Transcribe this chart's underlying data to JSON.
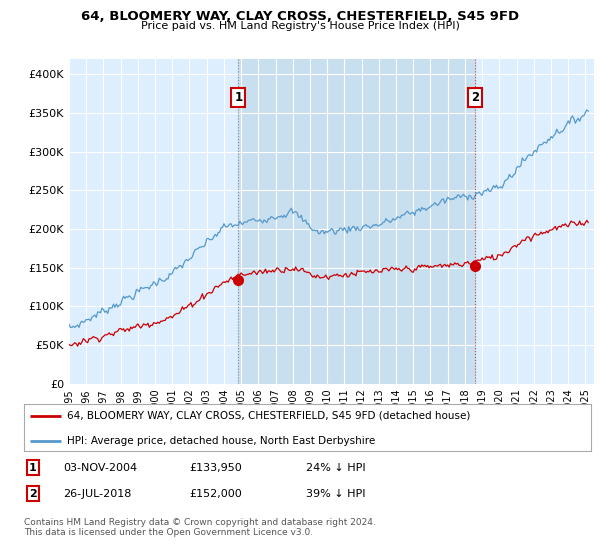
{
  "title": "64, BLOOMERY WAY, CLAY CROSS, CHESTERFIELD, S45 9FD",
  "subtitle": "Price paid vs. HM Land Registry's House Price Index (HPI)",
  "ylabel_ticks": [
    "£0",
    "£50K",
    "£100K",
    "£150K",
    "£200K",
    "£250K",
    "£300K",
    "£350K",
    "£400K"
  ],
  "ytick_values": [
    0,
    50000,
    100000,
    150000,
    200000,
    250000,
    300000,
    350000,
    400000
  ],
  "ylim": [
    0,
    420000
  ],
  "xlim_start": 1995.0,
  "xlim_end": 2025.5,
  "hpi_color": "#5599cc",
  "price_color": "#cc0000",
  "bg_color": "#ddeeff",
  "shade_color": "#c8dff0",
  "purchase1_x": 2004.84,
  "purchase1_y": 133950,
  "purchase2_x": 2018.57,
  "purchase2_y": 152000,
  "legend_line1": "64, BLOOMERY WAY, CLAY CROSS, CHESTERFIELD, S45 9FD (detached house)",
  "legend_line2": "HPI: Average price, detached house, North East Derbyshire",
  "footer": "Contains HM Land Registry data © Crown copyright and database right 2024.\nThis data is licensed under the Open Government Licence v3.0.",
  "xlabel_years": [
    1995,
    1996,
    1997,
    1998,
    1999,
    2000,
    2001,
    2002,
    2003,
    2004,
    2005,
    2006,
    2007,
    2008,
    2009,
    2010,
    2011,
    2012,
    2013,
    2014,
    2015,
    2016,
    2017,
    2018,
    2019,
    2020,
    2021,
    2022,
    2023,
    2024,
    2025
  ]
}
